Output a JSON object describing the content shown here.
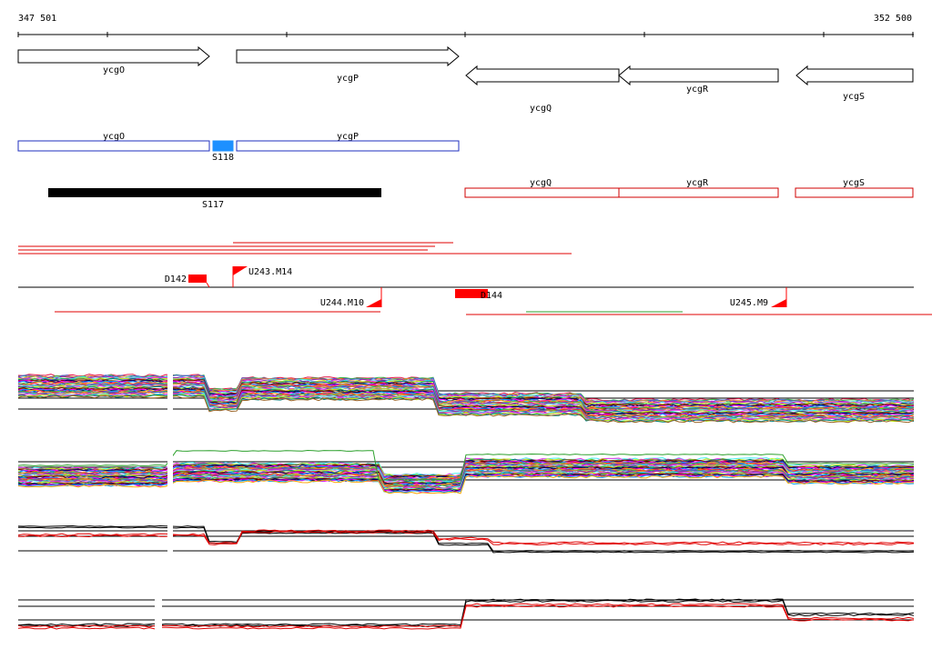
{
  "coordinates": {
    "start": "347 501",
    "end": "352 500"
  },
  "genes": [
    {
      "name": "ycgO",
      "strand": "+"
    },
    {
      "name": "ycgP",
      "strand": "+"
    },
    {
      "name": "ycgQ",
      "strand": "-"
    },
    {
      "name": "ycgR",
      "strand": "-"
    },
    {
      "name": "ycgS",
      "strand": "-"
    }
  ],
  "operons_forward": [
    {
      "label": "ycgO",
      "color": "#1f2fbf"
    },
    {
      "label": "S118",
      "color": "#1e90ff"
    },
    {
      "label": "ycgP",
      "color": "#1f2fbf"
    }
  ],
  "regions": [
    {
      "label": "S117",
      "color": "#000000"
    }
  ],
  "operons_reverse": [
    {
      "label": "ycgQ",
      "color": "#d00000"
    },
    {
      "label": "ycgR",
      "color": "#d00000"
    },
    {
      "label": "ycgS",
      "color": "#d00000"
    }
  ],
  "features": [
    {
      "label": "D142",
      "type": "block",
      "color": "#ff0000"
    },
    {
      "label": "U243.M14",
      "type": "flag-forward",
      "color": "#ff0000"
    },
    {
      "label": "U244.M10",
      "type": "flag-reverse",
      "color": "#ff0000"
    },
    {
      "label": "D144",
      "type": "block",
      "color": "#ff0000"
    },
    {
      "label": "U245.M9",
      "type": "flag-reverse",
      "color": "#ff0000"
    }
  ],
  "colors": {
    "axis": "#000000",
    "reads": "#e00000",
    "reads_alt": "#2ca02c",
    "trace_main": "#000000",
    "trace_alt": "#e00000"
  }
}
